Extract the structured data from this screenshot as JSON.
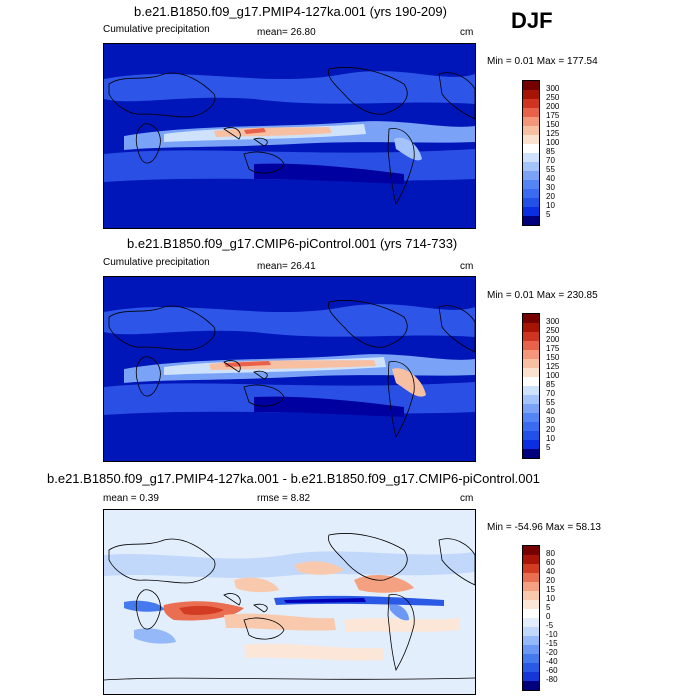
{
  "season": "DJF",
  "colors": {
    "precip_scale": [
      "#00007f",
      "#0000bb",
      "#0a2ee0",
      "#2350e8",
      "#3a6bf0",
      "#5585f4",
      "#7aa3f7",
      "#a4c3fa",
      "#cfe2fb",
      "#fbe2cf",
      "#f8c0a3",
      "#f3967a",
      "#e8614a",
      "#cf3420",
      "#a61405",
      "#750000"
    ],
    "diff_scale": [
      "#00007f",
      "#0000bb",
      "#1637d8",
      "#2a59e6",
      "#4579ee",
      "#6a98f4",
      "#95b8f8",
      "#c2d8fb",
      "#e3eefc",
      "#fce6d8",
      "#f9c9ad",
      "#f4a181",
      "#ea6f52",
      "#d23c23",
      "#a81508",
      "#750000"
    ],
    "land": "#000000",
    "ocean_low": "#0015b0"
  },
  "panels": [
    {
      "title": "b.e21.B1850.f09_g17.PMIP4-127ka.001 (yrs 190-209)",
      "left_label": "Cumulative precipitation",
      "stat_label": "mean=  26.80",
      "units": "cm",
      "minmax": "Min =   0.01 Max = 177.54",
      "colorbar_labels": [
        "300",
        "250",
        "200",
        "175",
        "150",
        "125",
        "100",
        "85",
        "70",
        "55",
        "40",
        "30",
        "20",
        "10",
        "5"
      ]
    },
    {
      "title": "b.e21.B1850.f09_g17.CMIP6-piControl.001 (yrs 714-733)",
      "left_label": "Cumulative precipitation",
      "stat_label": "mean=  26.41",
      "units": "cm",
      "minmax": "Min =   0.01 Max = 230.85",
      "colorbar_labels": [
        "300",
        "250",
        "200",
        "175",
        "150",
        "125",
        "100",
        "85",
        "70",
        "55",
        "40",
        "30",
        "20",
        "10",
        "5"
      ]
    },
    {
      "title": "b.e21.B1850.f09_g17.PMIP4-127ka.001 - b.e21.B1850.f09_g17.CMIP6-piControl.001",
      "left_label": "mean =   0.39",
      "stat_label": "rmse =   8.82",
      "units": "cm",
      "minmax": "Min = -54.96 Max =  58.13",
      "colorbar_labels": [
        "80",
        "60",
        "40",
        "20",
        "15",
        "10",
        "5",
        "0",
        "-5",
        "-10",
        "-15",
        "-20",
        "-40",
        "-60",
        "-80"
      ]
    }
  ]
}
